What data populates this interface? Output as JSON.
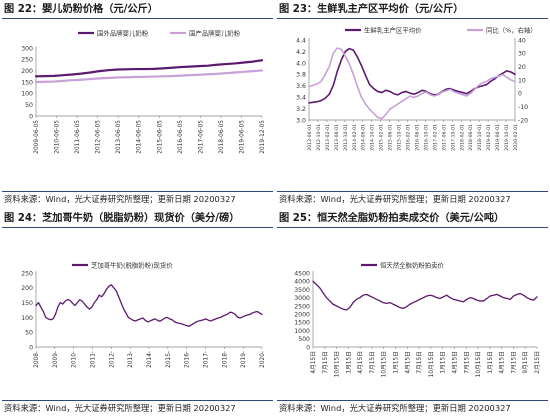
{
  "panels": [
    {
      "title": "图 22：婴儿奶粉价格（元/公斤）",
      "source": "资料来源：Wind，光大证券研究所整理；更新日期 20200327"
    },
    {
      "title": "图 23：生鲜乳主产区平均价（元/公斤）",
      "source": "资料来源：Wind，光大证券研究所整理；更新日期 20200327"
    },
    {
      "title": "图 24：芝加哥牛奶（脱脂奶粉）现货价（美分/磅）",
      "source": "资料来源：Wind，光大证券研究所整理；更新日期 20200327"
    },
    {
      "title": "图 25：恒天然全脂奶粉拍卖成交价（美元/公吨）",
      "source": "资料来源：Wind，光大证券研究所整理；更新日期 20200327"
    }
  ],
  "colors": {
    "dark_purple": "#5b1a6e",
    "light_purple": "#c7a0d8",
    "rule": "#2e4a7a",
    "grid": "#e3e3e3",
    "axis": "#888888",
    "text": "#333333"
  },
  "chart_data": [
    {
      "type": "line",
      "title": "图 22：婴儿奶粉价格（元/公斤）",
      "ylim": [
        0,
        300
      ],
      "yticks": [
        0,
        50,
        100,
        150,
        200,
        250,
        300
      ],
      "grid": false,
      "legend_position": "top",
      "x_ticks": [
        "2009-06-05",
        "2010-06-05",
        "2011-06-05",
        "2012-06-05",
        "2013-06-05",
        "2014-06-05",
        "2015-06-05",
        "2016-06-05",
        "2017-06-05",
        "2018-06-05",
        "2019-06-05",
        "2019-12-05"
      ],
      "series": [
        {
          "name": "国外品牌婴儿奶粉",
          "color": "#5b1a6e",
          "width": 2.2,
          "values": [
            175,
            176,
            177,
            180,
            183,
            187,
            192,
            198,
            202,
            205,
            206,
            207,
            207,
            208,
            210,
            213,
            216,
            218,
            220,
            222,
            226,
            229,
            232,
            236,
            240,
            246
          ]
        },
        {
          "name": "国产品牌婴儿奶粉",
          "color": "#c7a0d8",
          "width": 2.2,
          "values": [
            150,
            151,
            152,
            155,
            158,
            160,
            163,
            166,
            168,
            170,
            171,
            172,
            173,
            174,
            175,
            176,
            178,
            180,
            182,
            184,
            186,
            189,
            192,
            195,
            198,
            201
          ]
        }
      ]
    },
    {
      "type": "line",
      "title": "图 23：生鲜乳主产区平均价（元/公斤）",
      "ylim": [
        3.0,
        4.4
      ],
      "yticks": [
        3.0,
        3.2,
        3.4,
        3.6,
        3.8,
        4.0,
        4.2,
        4.4
      ],
      "y2lim": [
        -20,
        40
      ],
      "y2ticks": [
        -20,
        -10,
        0,
        10,
        20,
        30,
        40
      ],
      "grid": false,
      "legend_position": "top",
      "x_ticks": [
        "2012-06-01",
        "2012-10-01",
        "2013-02-01",
        "2013-06-01",
        "2013-10-01",
        "2014-02-01",
        "2014-06-01",
        "2014-10-01",
        "2015-02-01",
        "2015-06-01",
        "2015-10-01",
        "2016-02-01",
        "2016-06-01",
        "2016-10-01",
        "2017-02-01",
        "2017-06-01",
        "2017-10-01",
        "2018-02-01",
        "2018-06-01",
        "2018-10-01",
        "2019-02-01",
        "2019-06-01",
        "2019-10-01",
        "2020-02-01"
      ],
      "series": [
        {
          "name": "生鲜乳主产区平均价",
          "axis": "left",
          "color": "#5b1a6e",
          "width": 1.6,
          "values": [
            3.3,
            3.31,
            3.32,
            3.34,
            3.38,
            3.45,
            3.6,
            3.85,
            4.05,
            4.2,
            4.25,
            4.22,
            4.1,
            3.95,
            3.78,
            3.62,
            3.55,
            3.5,
            3.48,
            3.52,
            3.5,
            3.46,
            3.44,
            3.48,
            3.5,
            3.47,
            3.45,
            3.48,
            3.52,
            3.5,
            3.46,
            3.44,
            3.45,
            3.5,
            3.54,
            3.55,
            3.52,
            3.5,
            3.48,
            3.46,
            3.5,
            3.55,
            3.58,
            3.6,
            3.62,
            3.68,
            3.72,
            3.78,
            3.82,
            3.86,
            3.84,
            3.8
          ]
        },
        {
          "name": "同比（%，右轴）",
          "axis": "right",
          "color": "#c7a0d8",
          "width": 1.6,
          "values": [
            5,
            6,
            7,
            9,
            14,
            20,
            30,
            34,
            33,
            28,
            22,
            14,
            5,
            -3,
            -8,
            -12,
            -15,
            -18,
            -19,
            -16,
            -12,
            -10,
            -8,
            -6,
            -4,
            -2,
            -3,
            -2,
            0,
            1,
            -1,
            -2,
            -1,
            1,
            2,
            3,
            1,
            0,
            -1,
            -2,
            0,
            3,
            6,
            8,
            9,
            11,
            12,
            13,
            14,
            12,
            10,
            9
          ]
        }
      ]
    },
    {
      "type": "line",
      "title": "图 24：芝加哥牛奶（脱脂奶粉）现货价（美分/磅）",
      "ylim": [
        0,
        250
      ],
      "yticks": [
        0,
        50,
        100,
        150,
        200,
        250
      ],
      "grid": false,
      "legend_position": "top",
      "x_ticks": [
        "2008-",
        "2009-",
        "2010-",
        "2011-",
        "2012-",
        "2013-",
        "2014-",
        "2015-",
        "2016-",
        "2017-",
        "2018-",
        "2019-",
        "2020-"
      ],
      "series": [
        {
          "name": "芝加哥牛奶(脱脂奶粉)现货价",
          "color": "#5b1a6e",
          "width": 1.3,
          "values": [
            140,
            150,
            135,
            120,
            100,
            95,
            92,
            95,
            110,
            135,
            150,
            145,
            155,
            160,
            158,
            148,
            140,
            150,
            160,
            155,
            145,
            135,
            128,
            135,
            150,
            160,
            175,
            170,
            180,
            195,
            205,
            210,
            200,
            190,
            170,
            150,
            130,
            115,
            100,
            95,
            90,
            88,
            92,
            95,
            98,
            90,
            85,
            88,
            92,
            95,
            90,
            87,
            92,
            98,
            100,
            95,
            92,
            85,
            82,
            80,
            78,
            75,
            72,
            70,
            75,
            80,
            85,
            88,
            90,
            92,
            95,
            90,
            88,
            92,
            95,
            98,
            100,
            105,
            108,
            112,
            118,
            115,
            110,
            100,
            98,
            102,
            105,
            108,
            110,
            115,
            118,
            120,
            115,
            110
          ]
        }
      ]
    },
    {
      "type": "line",
      "title": "图 25：恒天然全脂奶粉拍卖成交价（美元/公吨）",
      "ylim": [
        0,
        4500
      ],
      "yticks": [
        0,
        500,
        1000,
        1500,
        2000,
        2500,
        3000,
        3500,
        4000,
        4500
      ],
      "grid": false,
      "legend_position": "top",
      "x_ticks": [
        "4月15日",
        "7月15日",
        "10月15日",
        "1月15日",
        "4月15日",
        "7月15日",
        "10月15日",
        "1月15日",
        "4月15日",
        "7月15日",
        "10月15日",
        "1月15日",
        "4月15日",
        "7月15日",
        "10月15日",
        "1月15日",
        "4月15日",
        "7月15日",
        "9月15日",
        "2月15日"
      ],
      "series": [
        {
          "name": "恒天然全脂奶粉拍卖价",
          "color": "#5b1a6e",
          "width": 1.3,
          "values": [
            4000,
            3800,
            3600,
            3300,
            3000,
            2800,
            2600,
            2500,
            2400,
            2300,
            2250,
            2400,
            2700,
            2900,
            3000,
            3150,
            3200,
            3100,
            3000,
            2900,
            2800,
            2700,
            2650,
            2700,
            2600,
            2500,
            2400,
            2350,
            2450,
            2600,
            2700,
            2800,
            2900,
            3000,
            3100,
            3150,
            3100,
            3000,
            2950,
            3050,
            3150,
            3000,
            2900,
            2850,
            2800,
            2750,
            2900,
            3000,
            2950,
            2850,
            2800,
            2800,
            2950,
            3100,
            3150,
            3200,
            3100,
            3000,
            2950,
            2900,
            3100,
            3200,
            3250,
            3150,
            3000,
            2900,
            2850,
            3050
          ]
        }
      ]
    }
  ]
}
